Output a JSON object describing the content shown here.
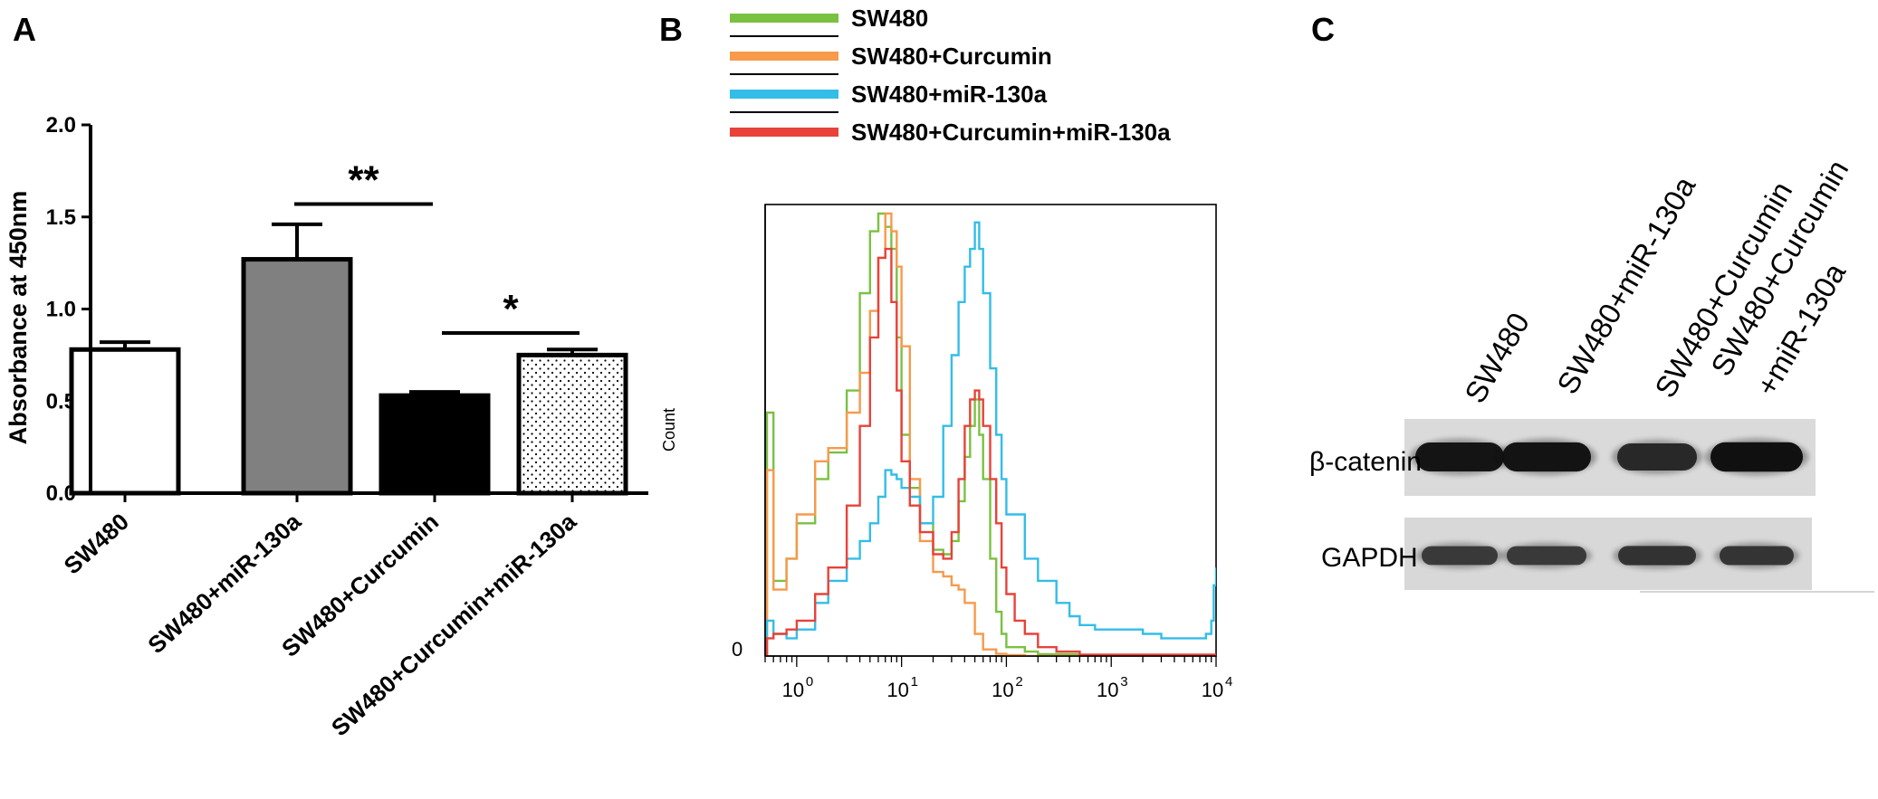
{
  "panels": {
    "a": "A",
    "b": "B",
    "c": "C"
  },
  "chart_data": [
    {
      "type": "bar",
      "panel": "A",
      "title": "",
      "xlabel": "",
      "ylabel": "Absorbance at 450nm",
      "ylim": [
        0,
        2.0
      ],
      "yticks": [
        "0.0",
        "0.5",
        "1.0",
        "1.5",
        "2.0"
      ],
      "yticks_values": [
        0,
        0.5,
        1.0,
        1.5,
        2.0
      ],
      "categories": [
        "SW480",
        "SW480+miR-130a",
        "SW480+Curcumin",
        "SW480+Curcumin+miR-130a"
      ],
      "values": [
        0.78,
        1.27,
        0.53,
        0.75
      ],
      "errors": [
        0.04,
        0.19,
        0.02,
        0.03
      ],
      "bar_styles": [
        "white",
        "gray",
        "black",
        "dotted"
      ],
      "significance": [
        {
          "label": "**",
          "between": [
            1,
            2
          ],
          "height": 1.57
        },
        {
          "label": "*",
          "between": [
            2,
            3
          ],
          "height": 0.87
        }
      ]
    },
    {
      "type": "line",
      "panel": "B",
      "title": "",
      "xlabel": "",
      "ylabel": "Count",
      "xscale": "log",
      "xlim": [
        0.5,
        10000
      ],
      "ylim": [
        0,
        100
      ],
      "ytick_zero": "0",
      "xtick_base": "10",
      "xtick_exps": [
        "0",
        "1",
        "2",
        "3",
        "4"
      ],
      "xtick_values": [
        1,
        10,
        100,
        1000,
        10000
      ],
      "legend_position": "top-left",
      "series": [
        {
          "name": "SW480",
          "color": "#7ac142",
          "x": [
            0.5,
            0.52,
            0.6,
            0.8,
            1,
            1.5,
            2,
            3,
            4,
            5,
            6,
            7,
            8,
            9,
            10,
            12,
            15,
            20,
            25,
            30,
            35,
            40,
            45,
            50,
            55,
            60,
            70,
            80,
            90,
            100,
            150,
            200,
            500,
            1000,
            10000
          ],
          "y": [
            0,
            55,
            17,
            22,
            30,
            40,
            46,
            60,
            82,
            96,
            100,
            97,
            92,
            72,
            50,
            38,
            30,
            24,
            23,
            26,
            35,
            45,
            52,
            58,
            50,
            40,
            22,
            10,
            5,
            2,
            1,
            0.4,
            0.2,
            0,
            0
          ]
        },
        {
          "name": "SW480+Curcumin",
          "color": "#f79a4c",
          "x": [
            0.5,
            0.52,
            0.6,
            0.8,
            1,
            1.5,
            2,
            3,
            4,
            5,
            6,
            7,
            8,
            9,
            10,
            12,
            15,
            20,
            25,
            30,
            35,
            40,
            50,
            60,
            80,
            100,
            150,
            10000
          ],
          "y": [
            0,
            42,
            15,
            22,
            32,
            44,
            47,
            55,
            64,
            78,
            90,
            100,
            96,
            88,
            70,
            40,
            26,
            19,
            18,
            16,
            15,
            12,
            5,
            1.5,
            0.5,
            0.2,
            0,
            0
          ]
        },
        {
          "name": "SW480+miR-130a",
          "color": "#33bde8",
          "x": [
            0.5,
            0.52,
            0.6,
            0.8,
            1,
            1.5,
            2,
            3,
            4,
            5,
            6,
            7,
            8,
            9,
            10,
            12,
            15,
            20,
            25,
            30,
            35,
            40,
            45,
            50,
            55,
            60,
            70,
            80,
            90,
            100,
            150,
            200,
            300,
            400,
            500,
            700,
            1000,
            2000,
            3000,
            5000,
            7000,
            8000,
            9000,
            9500,
            10000
          ],
          "y": [
            0,
            8,
            5,
            4,
            6,
            12,
            17,
            22,
            26,
            30,
            36,
            42,
            41,
            40,
            38,
            36,
            30,
            36,
            52,
            68,
            80,
            88,
            92,
            98,
            92,
            82,
            65,
            50,
            40,
            32,
            22,
            17,
            12,
            9,
            7,
            6,
            6,
            5,
            4,
            4,
            4,
            5,
            8,
            16,
            20
          ]
        },
        {
          "name": "SW480+Curcumin+miR-130a",
          "color": "#e8423a",
          "x": [
            0.5,
            0.52,
            0.6,
            0.8,
            1,
            1.5,
            2,
            3,
            4,
            5,
            6,
            7,
            8,
            9,
            10,
            12,
            15,
            20,
            25,
            30,
            35,
            40,
            45,
            50,
            55,
            60,
            70,
            80,
            90,
            100,
            120,
            150,
            200,
            300,
            500,
            10000
          ],
          "y": [
            0,
            4,
            5,
            6,
            8,
            14,
            20,
            34,
            52,
            72,
            90,
            92,
            80,
            60,
            44,
            34,
            28,
            23,
            22,
            28,
            40,
            52,
            58,
            60,
            58,
            52,
            40,
            30,
            20,
            14,
            8,
            5,
            2,
            1,
            0.3,
            0
          ]
        }
      ]
    },
    {
      "type": "table",
      "panel": "C",
      "title": "",
      "xlabel": "",
      "ylabel": "",
      "lanes": [
        "SW480",
        "SW480+miR-130a",
        "SW480+Curcumin",
        "SW480+Curcumin",
        "+miR-130a"
      ],
      "lane_groups": [
        [
          "SW480"
        ],
        [
          "SW480+miR-130a"
        ],
        [
          "SW480+Curcumin"
        ],
        [
          "SW480+Curcumin",
          "+miR-130a"
        ]
      ],
      "rows": [
        {
          "label": "β-catenin",
          "intensity": [
            0.9,
            0.92,
            0.72,
            0.95
          ]
        },
        {
          "label": "GAPDH",
          "intensity": [
            0.55,
            0.55,
            0.62,
            0.6
          ]
        }
      ]
    }
  ]
}
